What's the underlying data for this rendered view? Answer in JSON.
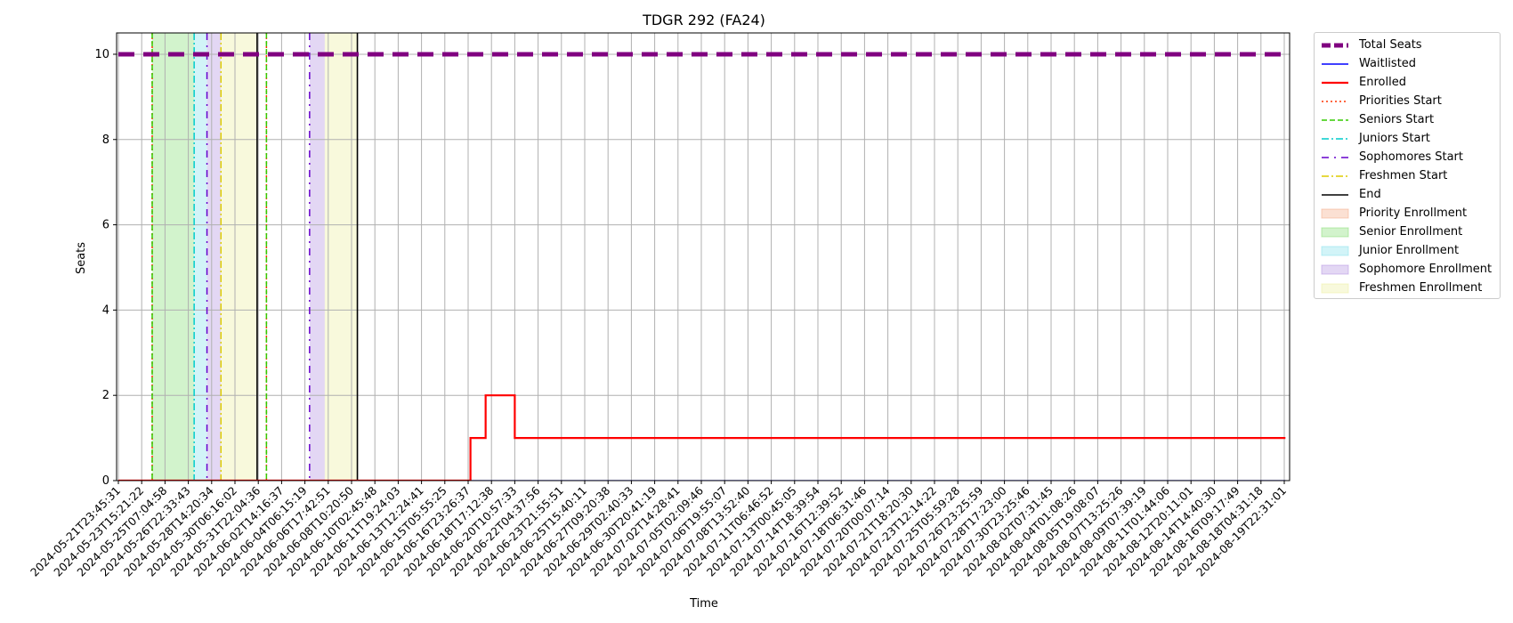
{
  "chart_data": {
    "type": "line",
    "title": "TDGR 292 (FA24)",
    "xlabel": "Time",
    "ylabel": "Seats",
    "ylim": [
      0,
      10.5
    ],
    "yticks": [
      0,
      2,
      4,
      6,
      8,
      10
    ],
    "grid": true,
    "legend_position": "outside-right",
    "x_tick_labels": [
      "2024-05-21T23:45:31",
      "2024-05-23T15:21:22",
      "2024-05-25T07:04:58",
      "2024-05-26T22:33:43",
      "2024-05-28T14:20:34",
      "2024-05-30T06:16:02",
      "2024-05-31T22:04:36",
      "2024-06-02T14:16:37",
      "2024-06-04T06:15:19",
      "2024-06-06T17:42:51",
      "2024-06-08T10:20:50",
      "2024-06-10T02:45:48",
      "2024-06-11T19:24:03",
      "2024-06-13T12:24:41",
      "2024-06-15T05:55:25",
      "2024-06-16T23:26:37",
      "2024-06-18T17:12:38",
      "2024-06-20T10:57:33",
      "2024-06-22T04:37:56",
      "2024-06-23T21:55:51",
      "2024-06-25T15:40:11",
      "2024-06-27T09:20:38",
      "2024-06-29T02:40:33",
      "2024-06-30T20:41:19",
      "2024-07-02T14:28:41",
      "2024-07-05T02:09:46",
      "2024-07-06T19:55:07",
      "2024-07-08T13:52:40",
      "2024-07-11T06:46:52",
      "2024-07-13T00:45:05",
      "2024-07-14T18:39:54",
      "2024-07-16T12:39:52",
      "2024-07-18T06:31:46",
      "2024-07-20T00:07:14",
      "2024-07-21T18:20:30",
      "2024-07-23T12:14:22",
      "2024-07-25T05:59:28",
      "2024-07-26T23:25:59",
      "2024-07-28T17:23:00",
      "2024-07-30T23:25:46",
      "2024-08-02T07:31:45",
      "2024-08-04T01:08:26",
      "2024-08-05T19:08:07",
      "2024-08-07T13:25:26",
      "2024-08-09T07:39:19",
      "2024-08-11T01:44:06",
      "2024-08-12T20:11:01",
      "2024-08-14T14:40:30",
      "2024-08-16T09:17:49",
      "2024-08-18T04:31:18",
      "2024-08-19T22:31:01"
    ],
    "series": [
      {
        "name": "Total Seats",
        "color": "#800080",
        "style": "dashed-thick",
        "points": [
          [
            0,
            10
          ],
          [
            50.05,
            10
          ]
        ]
      },
      {
        "name": "Waitlisted",
        "color": "#0000ff",
        "style": "solid",
        "points": [
          [
            0,
            0
          ],
          [
            50.05,
            0
          ]
        ]
      },
      {
        "name": "Enrolled",
        "color": "#ff0000",
        "style": "step",
        "points": [
          [
            0,
            0
          ],
          [
            15.1,
            0
          ],
          [
            15.1,
            1
          ],
          [
            15.75,
            1
          ],
          [
            15.75,
            2
          ],
          [
            17.0,
            2
          ],
          [
            17.0,
            1
          ],
          [
            50.05,
            1
          ]
        ]
      }
    ],
    "vertical_lines": [
      {
        "name": "Priorities Start",
        "color": "#ff3300",
        "style": "dotted",
        "x": [
          1.45,
          6.35
        ]
      },
      {
        "name": "Seniors Start",
        "color": "#33cc00",
        "style": "dashed",
        "x": [
          1.45,
          6.35
        ]
      },
      {
        "name": "Juniors Start",
        "color": "#00cccc",
        "style": "dashdot",
        "x": [
          3.25
        ]
      },
      {
        "name": "Sophomores Start",
        "color": "#6600cc",
        "style": "sparse-dashdot",
        "x": [
          3.8,
          8.2
        ]
      },
      {
        "name": "Freshmen Start",
        "color": "#ddcc00",
        "style": "dashdot",
        "x": [
          4.4
        ]
      },
      {
        "name": "End",
        "color": "#000000",
        "style": "solid",
        "x": [
          5.95,
          10.25
        ]
      }
    ],
    "shaded_regions": [
      {
        "name": "Priority Enrollment",
        "color": "#f4a582",
        "ranges": []
      },
      {
        "name": "Senior Enrollment",
        "color": "#7fdc6e",
        "ranges": [
          [
            1.45,
            3.25
          ]
        ]
      },
      {
        "name": "Junior Enrollment",
        "color": "#7fe0ea",
        "ranges": [
          [
            3.25,
            3.8
          ]
        ]
      },
      {
        "name": "Sophomore Enrollment",
        "color": "#b08be0",
        "ranges": [
          [
            3.8,
            4.4
          ],
          [
            8.2,
            8.85
          ]
        ]
      },
      {
        "name": "Freshmen Enrollment",
        "color": "#ecef9a",
        "ranges": [
          [
            4.4,
            5.95
          ],
          [
            8.85,
            10.25
          ]
        ]
      }
    ]
  }
}
